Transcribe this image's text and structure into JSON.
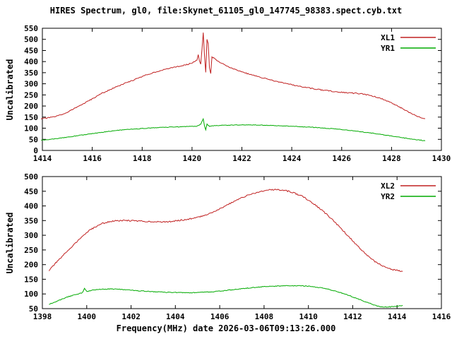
{
  "chart_data": {
    "type": "line",
    "title": "HIRES Spectrum, gl0, file:Skynet_61105_gl0_147745_98383.spect.cyb.txt",
    "xlabel": "Frequency(MHz) date 2026-03-06T09:13:26.000",
    "grid": false,
    "panels": [
      {
        "ylabel": "Uncalibrated",
        "xlim": [
          1414,
          1430
        ],
        "ylim": [
          0,
          550
        ],
        "xticks": [
          1414,
          1416,
          1418,
          1420,
          1422,
          1424,
          1426,
          1428,
          1430
        ],
        "yticks": [
          0,
          50,
          100,
          150,
          200,
          250,
          300,
          350,
          400,
          450,
          500,
          550
        ],
        "rect": {
          "left": 60,
          "top": 40,
          "right": 625,
          "bottom": 213
        },
        "legend_position": "top-right",
        "series": [
          {
            "name": "XL1",
            "color": "#c02020",
            "jitter": 2.2,
            "points": [
              [
                1413.95,
                143
              ],
              [
                1414.2,
                146
              ],
              [
                1414.5,
                152
              ],
              [
                1414.8,
                162
              ],
              [
                1415.1,
                178
              ],
              [
                1415.4,
                196
              ],
              [
                1415.7,
                213
              ],
              [
                1416.0,
                232
              ],
              [
                1416.3,
                252
              ],
              [
                1416.6,
                268
              ],
              [
                1416.9,
                283
              ],
              [
                1417.2,
                297
              ],
              [
                1417.5,
                310
              ],
              [
                1417.8,
                323
              ],
              [
                1418.1,
                337
              ],
              [
                1418.4,
                349
              ],
              [
                1418.7,
                358
              ],
              [
                1419.0,
                367
              ],
              [
                1419.3,
                375
              ],
              [
                1419.6,
                381
              ],
              [
                1419.9,
                390
              ],
              [
                1420.1,
                400
              ],
              [
                1420.2,
                408
              ],
              [
                1420.25,
                430
              ],
              [
                1420.3,
                400
              ],
              [
                1420.35,
                390
              ],
              [
                1420.4,
                455
              ],
              [
                1420.45,
                530
              ],
              [
                1420.5,
                430
              ],
              [
                1420.55,
                350
              ],
              [
                1420.6,
                500
              ],
              [
                1420.65,
                480
              ],
              [
                1420.7,
                370
              ],
              [
                1420.75,
                345
              ],
              [
                1420.8,
                420
              ],
              [
                1420.9,
                415
              ],
              [
                1421.0,
                405
              ],
              [
                1421.2,
                392
              ],
              [
                1421.5,
                375
              ],
              [
                1421.8,
                362
              ],
              [
                1422.1,
                350
              ],
              [
                1422.4,
                340
              ],
              [
                1422.7,
                330
              ],
              [
                1423.0,
                322
              ],
              [
                1423.3,
                313
              ],
              [
                1423.6,
                306
              ],
              [
                1423.9,
                298
              ],
              [
                1424.2,
                291
              ],
              [
                1424.5,
                285
              ],
              [
                1424.8,
                279
              ],
              [
                1425.1,
                274
              ],
              [
                1425.4,
                269
              ],
              [
                1425.7,
                265
              ],
              [
                1426.0,
                262
              ],
              [
                1426.3,
                259
              ],
              [
                1426.6,
                257
              ],
              [
                1426.9,
                253
              ],
              [
                1427.2,
                246
              ],
              [
                1427.5,
                237
              ],
              [
                1427.8,
                224
              ],
              [
                1428.1,
                209
              ],
              [
                1428.4,
                191
              ],
              [
                1428.7,
                172
              ],
              [
                1429.0,
                155
              ],
              [
                1429.2,
                146
              ],
              [
                1429.35,
                141
              ]
            ]
          },
          {
            "name": "YR1",
            "color": "#00aa00",
            "jitter": 1.3,
            "points": [
              [
                1413.95,
                47
              ],
              [
                1414.3,
                50
              ],
              [
                1414.7,
                55
              ],
              [
                1415.1,
                61
              ],
              [
                1415.5,
                68
              ],
              [
                1415.9,
                74
              ],
              [
                1416.3,
                80
              ],
              [
                1416.7,
                86
              ],
              [
                1417.1,
                91
              ],
              [
                1417.5,
                95
              ],
              [
                1417.9,
                98
              ],
              [
                1418.3,
                101
              ],
              [
                1418.7,
                103
              ],
              [
                1419.1,
                105
              ],
              [
                1419.5,
                106
              ],
              [
                1419.9,
                108
              ],
              [
                1420.2,
                109
              ],
              [
                1420.35,
                118
              ],
              [
                1420.45,
                142
              ],
              [
                1420.5,
                110
              ],
              [
                1420.55,
                92
              ],
              [
                1420.6,
                118
              ],
              [
                1420.7,
                108
              ],
              [
                1420.9,
                112
              ],
              [
                1421.2,
                113
              ],
              [
                1421.6,
                114
              ],
              [
                1422.0,
                115
              ],
              [
                1422.5,
                115
              ],
              [
                1423.0,
                113
              ],
              [
                1423.5,
                111
              ],
              [
                1424.0,
                109
              ],
              [
                1424.5,
                106
              ],
              [
                1425.0,
                103
              ],
              [
                1425.5,
                99
              ],
              [
                1426.0,
                94
              ],
              [
                1426.5,
                88
              ],
              [
                1427.0,
                81
              ],
              [
                1427.5,
                73
              ],
              [
                1428.0,
                65
              ],
              [
                1428.4,
                58
              ],
              [
                1428.8,
                51
              ],
              [
                1429.1,
                47
              ],
              [
                1429.35,
                44
              ]
            ]
          }
        ]
      },
      {
        "ylabel": "Uncalibrated",
        "xlim": [
          1398,
          1416
        ],
        "ylim": [
          50,
          500
        ],
        "xticks": [
          1398,
          1400,
          1402,
          1404,
          1406,
          1408,
          1410,
          1412,
          1414,
          1416
        ],
        "yticks": [
          50,
          100,
          150,
          200,
          250,
          300,
          350,
          400,
          450,
          500
        ],
        "rect": {
          "left": 60,
          "top": 250,
          "right": 625,
          "bottom": 437
        },
        "legend_position": "top-right",
        "series": [
          {
            "name": "XL2",
            "color": "#c02020",
            "jitter": 2.2,
            "points": [
              [
                1398.3,
                180
              ],
              [
                1398.6,
                205
              ],
              [
                1398.9,
                228
              ],
              [
                1399.2,
                252
              ],
              [
                1399.5,
                274
              ],
              [
                1399.8,
                296
              ],
              [
                1400.1,
                315
              ],
              [
                1400.4,
                329
              ],
              [
                1400.7,
                340
              ],
              [
                1401.0,
                346
              ],
              [
                1401.3,
                349
              ],
              [
                1401.6,
                350
              ],
              [
                1401.9,
                350
              ],
              [
                1402.2,
                349
              ],
              [
                1402.5,
                348
              ],
              [
                1402.8,
                347
              ],
              [
                1403.1,
                346
              ],
              [
                1403.4,
                345
              ],
              [
                1403.7,
                346
              ],
              [
                1404.0,
                349
              ],
              [
                1404.3,
                352
              ],
              [
                1404.6,
                355
              ],
              [
                1404.9,
                359
              ],
              [
                1405.2,
                365
              ],
              [
                1405.5,
                373
              ],
              [
                1405.8,
                383
              ],
              [
                1406.1,
                394
              ],
              [
                1406.4,
                406
              ],
              [
                1406.7,
                417
              ],
              [
                1407.0,
                428
              ],
              [
                1407.3,
                437
              ],
              [
                1407.6,
                444
              ],
              [
                1407.9,
                450
              ],
              [
                1408.2,
                454
              ],
              [
                1408.5,
                456
              ],
              [
                1408.8,
                454
              ],
              [
                1409.1,
                450
              ],
              [
                1409.4,
                443
              ],
              [
                1409.7,
                433
              ],
              [
                1410.0,
                420
              ],
              [
                1410.3,
                404
              ],
              [
                1410.6,
                386
              ],
              [
                1410.9,
                366
              ],
              [
                1411.2,
                344
              ],
              [
                1411.5,
                321
              ],
              [
                1411.8,
                297
              ],
              [
                1412.1,
                273
              ],
              [
                1412.4,
                250
              ],
              [
                1412.7,
                229
              ],
              [
                1413.0,
                211
              ],
              [
                1413.3,
                197
              ],
              [
                1413.6,
                187
              ],
              [
                1413.9,
                181
              ],
              [
                1414.1,
                179
              ],
              [
                1414.25,
                178
              ]
            ]
          },
          {
            "name": "YR2",
            "color": "#00aa00",
            "jitter": 1.3,
            "points": [
              [
                1398.3,
                65
              ],
              [
                1398.6,
                74
              ],
              [
                1398.9,
                83
              ],
              [
                1399.2,
                91
              ],
              [
                1399.5,
                98
              ],
              [
                1399.8,
                104
              ],
              [
                1399.9,
                118
              ],
              [
                1400.0,
                108
              ],
              [
                1400.2,
                112
              ],
              [
                1400.5,
                115
              ],
              [
                1400.8,
                116
              ],
              [
                1401.1,
                117
              ],
              [
                1401.4,
                116
              ],
              [
                1401.7,
                114
              ],
              [
                1402.0,
                113
              ],
              [
                1402.3,
                111
              ],
              [
                1402.6,
                110
              ],
              [
                1402.9,
                108
              ],
              [
                1403.2,
                107
              ],
              [
                1403.5,
                106
              ],
              [
                1403.8,
                105
              ],
              [
                1404.1,
                105
              ],
              [
                1404.4,
                104
              ],
              [
                1404.7,
                104
              ],
              [
                1405.0,
                105
              ],
              [
                1405.3,
                106
              ],
              [
                1405.6,
                107
              ],
              [
                1405.9,
                109
              ],
              [
                1406.2,
                111
              ],
              [
                1406.5,
                114
              ],
              [
                1406.8,
                116
              ],
              [
                1407.1,
                119
              ],
              [
                1407.4,
                121
              ],
              [
                1407.7,
                123
              ],
              [
                1408.0,
                125
              ],
              [
                1408.3,
                126
              ],
              [
                1408.6,
                127
              ],
              [
                1408.9,
                128
              ],
              [
                1409.2,
                128
              ],
              [
                1409.5,
                128
              ],
              [
                1409.8,
                127
              ],
              [
                1410.1,
                126
              ],
              [
                1410.4,
                123
              ],
              [
                1410.7,
                119
              ],
              [
                1411.0,
                114
              ],
              [
                1411.3,
                108
              ],
              [
                1411.6,
                101
              ],
              [
                1411.9,
                93
              ],
              [
                1412.2,
                84
              ],
              [
                1412.5,
                75
              ],
              [
                1412.8,
                67
              ],
              [
                1413.1,
                59
              ],
              [
                1413.4,
                55
              ],
              [
                1413.7,
                56
              ],
              [
                1414.0,
                58
              ],
              [
                1414.25,
                61
              ]
            ]
          }
        ]
      }
    ]
  }
}
